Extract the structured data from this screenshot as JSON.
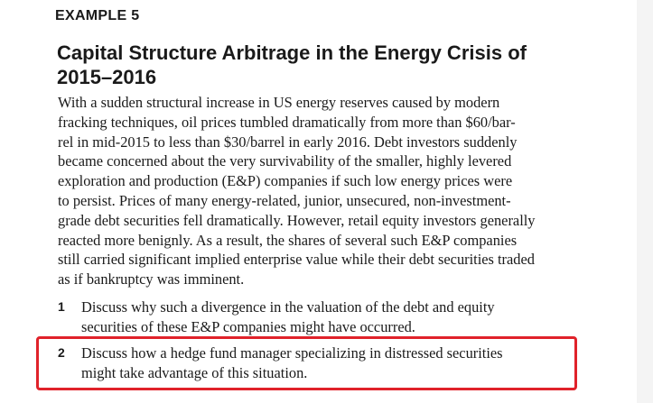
{
  "example_label": "EXAMPLE 5",
  "title_lines": [
    "Capital Structure Arbitrage in the Energy Crisis of",
    "2015–2016"
  ],
  "body_lines": [
    "With a sudden structural increase in US energy reserves caused by modern",
    "fracking techniques, oil prices tumbled dramatically from more than $60/bar-",
    "rel in mid-2015 to less than $30/barrel in early 2016. Debt investors suddenly",
    "became concerned about the very survivability of the smaller, highly levered",
    "exploration and production (E&P) companies if such low energy prices were",
    "to persist. Prices of many energy-related, junior, unsecured, non-investment-",
    "grade debt securities fell dramatically. However, retail equity investors generally",
    "reacted more benignly. As a result, the shares of several such E&P companies",
    "still carried significant implied enterprise value while their debt securities traded",
    "as if bankruptcy was imminent."
  ],
  "questions": [
    {
      "number": "1",
      "lines": [
        "Discuss why such a divergence in the valuation of the debt and equity",
        "securities of these E&P companies might have occurred."
      ]
    },
    {
      "number": "2",
      "lines": [
        "Discuss how a hedge fund manager specializing in distressed securities",
        "might take advantage of this situation."
      ]
    }
  ],
  "highlight_color": "#e0222a"
}
